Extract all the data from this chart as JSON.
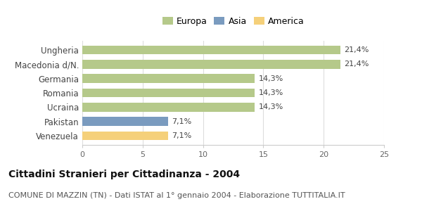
{
  "categories": [
    "Ungheria",
    "Macedonia d/N.",
    "Germania",
    "Romania",
    "Ucraina",
    "Pakistan",
    "Venezuela"
  ],
  "values": [
    21.4,
    21.4,
    14.3,
    14.3,
    14.3,
    7.1,
    7.1
  ],
  "labels": [
    "21,4%",
    "21,4%",
    "14,3%",
    "14,3%",
    "14,3%",
    "7,1%",
    "7,1%"
  ],
  "colors": [
    "#b5c98a",
    "#b5c98a",
    "#b5c98a",
    "#b5c98a",
    "#b5c98a",
    "#7a9bbf",
    "#f5d07a"
  ],
  "legend": [
    {
      "label": "Europa",
      "color": "#b5c98a"
    },
    {
      "label": "Asia",
      "color": "#7a9bbf"
    },
    {
      "label": "America",
      "color": "#f5d07a"
    }
  ],
  "xlim": [
    0,
    25
  ],
  "xticks": [
    0,
    5,
    10,
    15,
    20,
    25
  ],
  "title": "Cittadini Stranieri per Cittadinanza - 2004",
  "subtitle": "COMUNE DI MAZZIN (TN) - Dati ISTAT al 1° gennaio 2004 - Elaborazione TUTTITALIA.IT",
  "title_fontsize": 10,
  "subtitle_fontsize": 8,
  "bar_height": 0.62,
  "background_color": "#ffffff",
  "grid_color": "#dddddd",
  "label_fontsize": 8,
  "tick_fontsize": 8,
  "ytick_fontsize": 8.5
}
